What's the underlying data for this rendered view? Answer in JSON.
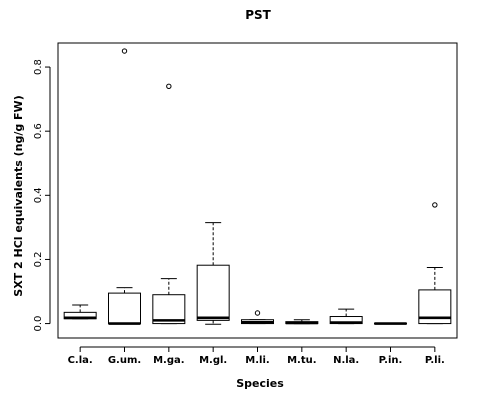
{
  "chart_data": {
    "type": "boxplot",
    "title": "PST",
    "xlabel": "Species",
    "ylabel": "SXT 2 HCl equivalents (ng/g FW)",
    "ylim": [
      -0.045,
      0.875
    ],
    "yticks": [
      0.0,
      0.2,
      0.4,
      0.6,
      0.8
    ],
    "ytick_labels": [
      "0.0",
      "0.2",
      "0.4",
      "0.6",
      "0.8"
    ],
    "categories": [
      "C.la.",
      "G.um.",
      "M.ga.",
      "M.gl.",
      "M.li.",
      "M.tu.",
      "N.la.",
      "P.in.",
      "P.li."
    ],
    "boxes": [
      {
        "name": "C.la.",
        "whisker_low": 0.015,
        "q1": 0.015,
        "median": 0.018,
        "q3": 0.035,
        "whisker_high": 0.058,
        "outliers": []
      },
      {
        "name": "G.um.",
        "whisker_low": 0.0,
        "q1": 0.0,
        "median": 0.0,
        "q3": 0.095,
        "whisker_high": 0.112,
        "outliers": [
          0.85
        ]
      },
      {
        "name": "M.ga.",
        "whisker_low": 0.0,
        "q1": 0.0,
        "median": 0.01,
        "q3": 0.09,
        "whisker_high": 0.14,
        "outliers": [
          0.74
        ]
      },
      {
        "name": "M.gl.",
        "whisker_low": -0.002,
        "q1": 0.01,
        "median": 0.018,
        "q3": 0.182,
        "whisker_high": 0.315,
        "outliers": []
      },
      {
        "name": "M.li.",
        "whisker_low": 0.0,
        "q1": 0.0,
        "median": 0.004,
        "q3": 0.012,
        "whisker_high": 0.012,
        "outliers": [
          0.033
        ]
      },
      {
        "name": "M.tu.",
        "whisker_low": 0.0,
        "q1": 0.0,
        "median": 0.002,
        "q3": 0.006,
        "whisker_high": 0.012,
        "outliers": []
      },
      {
        "name": "N.la.",
        "whisker_low": 0.0,
        "q1": 0.0,
        "median": 0.003,
        "q3": 0.022,
        "whisker_high": 0.045,
        "outliers": []
      },
      {
        "name": "P.in.",
        "whisker_low": 0.0,
        "q1": 0.0,
        "median": 0.0,
        "q3": 0.001,
        "whisker_high": 0.001,
        "outliers": []
      },
      {
        "name": "P.li.",
        "whisker_low": 0.0,
        "q1": 0.0,
        "median": 0.018,
        "q3": 0.105,
        "whisker_high": 0.175,
        "outliers": [
          0.37
        ]
      }
    ],
    "grid": false,
    "legend": "none"
  }
}
